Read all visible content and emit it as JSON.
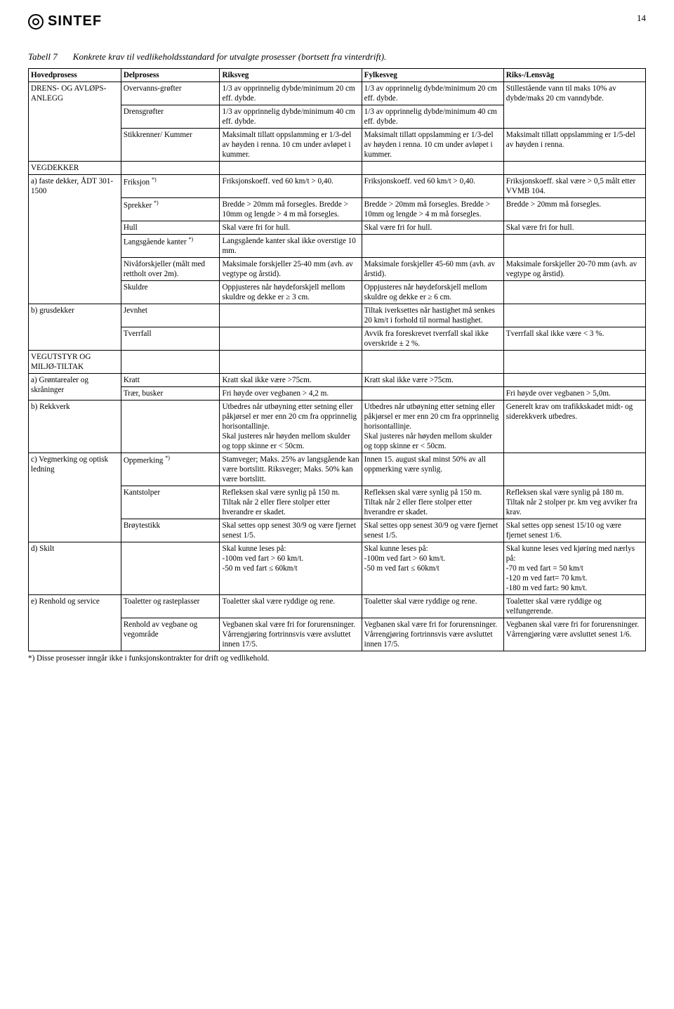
{
  "page_number": "14",
  "logo_text": "SINTEF",
  "table_number": "Tabell 7",
  "table_caption": "Konkrete krav til vedlikeholdsstandard for utvalgte prosesser (bortsett fra vinterdrift).",
  "columns": [
    "Hovedprosess",
    "Delprosess",
    "Riksveg",
    "Fylkesveg",
    "Riks-/Lensväg"
  ],
  "footnote": "*) Disse prosesser inngår ikke i funksjonskontrakter for drift og vedlikehold.",
  "rows": [
    {
      "c1": "DRENS- OG AVLØPS-ANLEGG",
      "c2": "Overvanns-grøfter",
      "c3": "1/3 av opprinnelig dybde/minimum 20 cm eff. dybde.",
      "c4": "1/3 av opprinnelig dybde/minimum 20 cm eff. dybde.",
      "c5": "Stillestående vann til maks 10% av dybde/maks 20 cm vanndybde.",
      "c1_rowspan": 3,
      "c5_rowspan": 2
    },
    {
      "c2": "Drensgrøfter",
      "c3": "1/3 av opprinnelig dybde/minimum 40 cm eff. dybde.",
      "c4": "1/3 av opprinnelig dybde/minimum 40 cm eff. dybde."
    },
    {
      "c2": "Stikkrenner/ Kummer",
      "c3": "Maksimalt tillatt oppslamming er 1/3-del av høyden i renna. 10 cm under avløpet i kummer.",
      "c4": "Maksimalt tillatt oppslamming er 1/3-del av høyden i renna. 10 cm under avløpet i kummer.",
      "c5": "Maksimalt tillatt oppslamming er 1/5-del av høyden i renna."
    },
    {
      "c1": "VEGDEKKER",
      "c2": "",
      "c3": "",
      "c4": "",
      "c5": ""
    },
    {
      "c1": "a) faste dekker, ÅDT 301-1500",
      "c2_html": "Friksjon <span class=\"sup\">*)</span>",
      "c3": "Friksjonskoeff. ved 60 km/t > 0,40.",
      "c4": "Friksjonskoeff. ved 60 km/t > 0,40.",
      "c5": "Friksjonskoeff. skal være > 0,5 målt etter VVMB 104.",
      "c1_rowspan": 6
    },
    {
      "c2_html": "Sprekker <span class=\"sup\">*)</span>",
      "c3": "Bredde > 20mm må forsegles. Bredde > 10mm og lengde > 4 m må forsegles.",
      "c4": "Bredde > 20mm må forsegles. Bredde > 10mm og lengde > 4 m må forsegles.",
      "c5": "Bredde > 20mm må forsegles."
    },
    {
      "c2": "Hull",
      "c3": "Skal være fri for hull.",
      "c4": "Skal være fri for hull.",
      "c5": "Skal være fri for hull."
    },
    {
      "c2_html": "Langsgående kanter <span class=\"sup\">*)</span>",
      "c3": "Langsgående kanter skal ikke overstige 10 mm.",
      "c4": "",
      "c5": ""
    },
    {
      "c2": "Nivåforskjeller (målt med rettholt over 2m).",
      "c3": "Maksimale forskjeller 25-40 mm (avh. av vegtype og årstid).",
      "c4": "Maksimale forskjeller 45-60 mm (avh. av årstid).",
      "c5": "Maksimale forskjeller 20-70 mm (avh. av vegtype og årstid)."
    },
    {
      "c2": "Skuldre",
      "c3": "Oppjusteres når høydeforskjell mellom skuldre og dekke er ≥ 3 cm.",
      "c4": "Oppjusteres når høydeforskjell mellom skuldre og dekke er ≥ 6 cm.",
      "c5": ""
    },
    {
      "c1": "b) grusdekker",
      "c2": "Jevnhet",
      "c3": "",
      "c4": "Tiltak iverksettes når hastighet må senkes 20 km/t i forhold til normal hastighet.",
      "c5": "",
      "c1_rowspan": 2
    },
    {
      "c2": "Tverrfall",
      "c3": "",
      "c4": "Avvik fra foreskrevet tverrfall skal ikke overskride ± 2 %.",
      "c5": "Tverrfall skal ikke være < 3 %."
    },
    {
      "c1": "VEGUTSTYR OG MILJØ-TILTAK",
      "c2": "",
      "c3": "",
      "c4": "",
      "c5": ""
    },
    {
      "c1": "a) Grøntarealer og skråninger",
      "c2": "Kratt",
      "c3": "Kratt skal ikke være >75cm.",
      "c4": "Kratt skal ikke være >75cm.",
      "c5": "",
      "c1_rowspan": 2
    },
    {
      "c2": "Trær, busker",
      "c3": "Fri høyde over vegbanen > 4,2 m.",
      "c4": "",
      "c5": "Fri høyde over vegbanen > 5,0m.",
      "spacer_before": true
    },
    {
      "c1": "b) Rekkverk",
      "c2": "",
      "c3": "Utbedres når utbøyning etter setning eller påkjørsel er mer enn 20 cm fra opprinnelig horisontallinje.\nSkal justeres når høyden mellom skulder og topp skinne er < 50cm.",
      "c4": "Utbedres når utbøyning etter setning eller påkjørsel er mer enn 20 cm fra opprinnelig horisontallinje.\nSkal justeres når høyden mellom skulder og topp skinne er < 50cm.",
      "c5": "Generelt krav om trafikkskadet midt- og siderekkverk utbedres."
    },
    {
      "c1": "c) Vegmerking og optisk ledning",
      "c2_html": "Oppmerking <span class=\"sup\">*)</span>",
      "c3": "Stamveger; Maks. 25% av langsgående kan være bortslitt. Riksveger; Maks. 50% kan være bortslitt.",
      "c4": "Innen 15. august skal minst 50% av all oppmerking være synlig.",
      "c5": "",
      "c1_rowspan": 3
    },
    {
      "c2": "Kantstolper",
      "c3": "Refleksen skal være synlig på 150 m.  Tiltak når 2 eller flere stolper etter hverandre er skadet.",
      "c4": "Refleksen skal være synlig på 150 m. Tiltak når 2 eller flere stolper etter hverandre er skadet.",
      "c5": "Refleksen skal være synlig på 180 m. Tiltak når 2 stolper pr. km veg avviker fra krav."
    },
    {
      "c2": "Brøytestikk",
      "c3": "Skal settes opp senest 30/9 og være fjernet senest 1/5.",
      "c4": "Skal settes opp senest 30/9 og være fjernet senest 1/5.",
      "c5": "Skal settes opp senest 15/10 og være fjernet senest 1/6."
    },
    {
      "c1": "d) Skilt",
      "c2": "",
      "c3": "Skal kunne leses på:\n-100m ved fart > 60 km/t.\n-50 m ved fart ≤ 60km/t",
      "c4": "Skal kunne leses på:\n-100m ved fart > 60 km/t.\n-50 m ved fart ≤ 60km/t",
      "c5": "Skal kunne leses ved kjøring med nærlys på:\n-70 m ved fart = 50 km/t\n-120 m ved fart= 70 km/t.\n-180 m ved fart≥ 90 km/t."
    },
    {
      "c1": "e) Renhold og service",
      "c2": "Toaletter og rasteplasser",
      "c3": "Toaletter skal være ryddige og rene.",
      "c4": "Toaletter skal være ryddige og rene.",
      "c5": "Toaletter skal være ryddige og velfungerende.",
      "c1_rowspan": 2
    },
    {
      "c2": "Renhold av vegbane og vegområde",
      "c3": "Vegbanen skal være fri for forurensninger. Vårrengjøring fortrinnsvis være avsluttet innen 17/5.",
      "c4": "Vegbanen skal være fri for forurensninger. Vårrengjøring fortrinnsvis være avsluttet innen 17/5.",
      "c5": "Vegbanen skal være fri for forurensninger. Vårrengjøring være avsluttet senest 1/6."
    }
  ]
}
